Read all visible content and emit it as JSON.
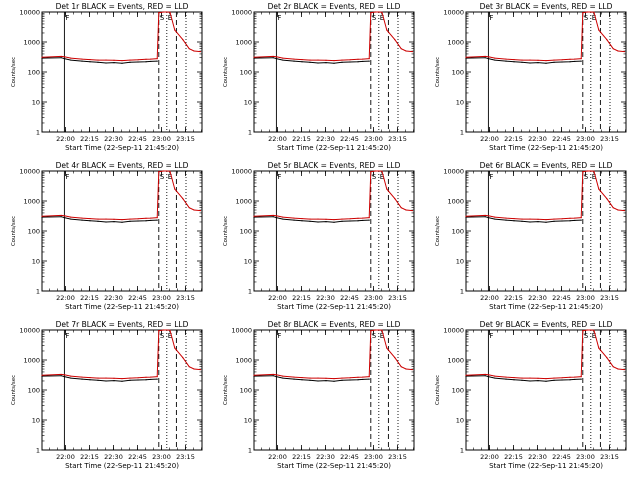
{
  "chart_data": {
    "type": "line",
    "title_template": "Det {n}r BLACK = Events, RED = LLD",
    "panels": [
      {
        "title": "Det 1r BLACK = Events, RED = LLD",
        "det": 1
      },
      {
        "title": "Det 2r BLACK = Events, RED = LLD",
        "det": 2
      },
      {
        "title": "Det 3r BLACK = Events, RED = LLD",
        "det": 3
      },
      {
        "title": "Det 4r BLACK = Events, RED = LLD",
        "det": 4
      },
      {
        "title": "Det 5r BLACK = Events, RED = LLD",
        "det": 5
      },
      {
        "title": "Det 6r BLACK = Events, RED = LLD",
        "det": 6
      },
      {
        "title": "Det 7r BLACK = Events, RED = LLD",
        "det": 7
      },
      {
        "title": "Det 8r BLACK = Events, RED = LLD",
        "det": 8
      },
      {
        "title": "Det 9r BLACK = Events, RED = LLD",
        "det": 9
      }
    ],
    "xlabel": "Start Time (22-Sep-11 21:45:20)",
    "ylabel": "Counts/sec",
    "x_tick_labels": [
      "22:00",
      "22:15",
      "22:30",
      "22:45",
      "23:00",
      "23:15"
    ],
    "x_tick_minutes": [
      14.67,
      29.67,
      44.67,
      59.67,
      74.67,
      89.67
    ],
    "xlim_minutes": [
      0,
      100
    ],
    "y_scale": "log",
    "ylim": [
      1,
      10000
    ],
    "y_tick_labels": [
      "1",
      "10",
      "100",
      "1000",
      "10000"
    ],
    "y_tick_values": [
      1,
      10,
      100,
      1000,
      10000
    ],
    "series": [
      {
        "name": "Events",
        "color": "#000000",
        "x": [
          0,
          12,
          14,
          18,
          25,
          30,
          35,
          40,
          45,
          50,
          55,
          60,
          65,
          68,
          72
        ],
        "y": [
          290,
          300,
          280,
          250,
          230,
          220,
          210,
          200,
          205,
          195,
          210,
          215,
          220,
          225,
          230
        ]
      },
      {
        "name": "LLD",
        "color": "#cc0000",
        "x": [
          0,
          12,
          14,
          18,
          25,
          30,
          35,
          40,
          45,
          50,
          55,
          60,
          65,
          68,
          72,
          73,
          76,
          78,
          80,
          83,
          88,
          92,
          95,
          99
        ],
        "y": [
          310,
          330,
          320,
          290,
          270,
          260,
          250,
          250,
          245,
          240,
          250,
          255,
          265,
          270,
          280,
          9500,
          10000,
          10000,
          9800,
          2500,
          1200,
          600,
          500,
          480
        ]
      }
    ],
    "vertical_markers": [
      {
        "label": "F",
        "x": 14,
        "style": "solid"
      },
      {
        "label": "S",
        "x": 73,
        "style": "dashed"
      },
      {
        "label": "E",
        "x": 78,
        "style": "dotted"
      },
      {
        "label": "",
        "x": 84,
        "style": "dashed"
      },
      {
        "label": "",
        "x": 90,
        "style": "dotted"
      }
    ]
  }
}
